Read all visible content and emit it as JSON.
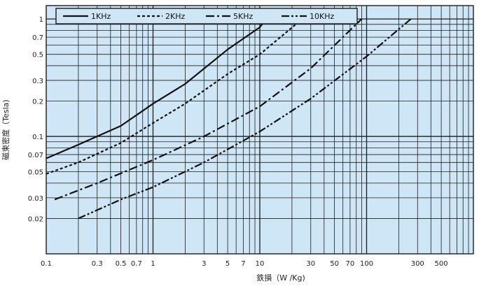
{
  "chart_data": {
    "type": "line",
    "xscale": "log",
    "yscale": "log",
    "xlabel": "鉄損（W /Kg)",
    "ylabel": "磁束密度（Tesla)",
    "xlim": [
      0.1,
      1000
    ],
    "ylim": [
      0.01,
      1.3
    ],
    "grid": true,
    "legend_position": "top",
    "x_tick_labels": [
      "0.1",
      "0.3",
      "0.5",
      "0.7",
      "1",
      "3",
      "5",
      "7",
      "10",
      "30",
      "50",
      "70",
      "100",
      "300",
      "500"
    ],
    "y_tick_labels": [
      "1",
      "0.7",
      "0.5",
      "0.3",
      "0.2",
      "0.1",
      "0.07",
      "0.05",
      "0.03",
      "0.02"
    ],
    "series": [
      {
        "name": "1KHz",
        "dash": "solid",
        "x": [
          0.1,
          0.2,
          0.5,
          1,
          2,
          5,
          10,
          11.5
        ],
        "y": [
          0.065,
          0.085,
          0.123,
          0.19,
          0.28,
          0.55,
          0.85,
          1.0
        ]
      },
      {
        "name": "2KHz",
        "dash": "dotted",
        "x": [
          0.1,
          0.2,
          0.5,
          1,
          2,
          5,
          10,
          25
        ],
        "y": [
          0.048,
          0.06,
          0.088,
          0.13,
          0.19,
          0.34,
          0.5,
          1.0
        ]
      },
      {
        "name": "5KHz",
        "dash": "dashdot",
        "x": [
          0.12,
          0.3,
          1,
          3,
          10,
          30,
          90
        ],
        "y": [
          0.029,
          0.04,
          0.063,
          0.1,
          0.18,
          0.38,
          1.0
        ]
      },
      {
        "name": "10KHz",
        "dash": "dashdotdot",
        "x": [
          0.2,
          0.5,
          1,
          3,
          10,
          30,
          100,
          260
        ],
        "y": [
          0.02,
          0.029,
          0.037,
          0.06,
          0.11,
          0.21,
          0.48,
          1.0
        ]
      }
    ],
    "colors": {
      "background": "#cfe6f7",
      "grid": "#1c1c1c",
      "line": "#111111"
    }
  }
}
